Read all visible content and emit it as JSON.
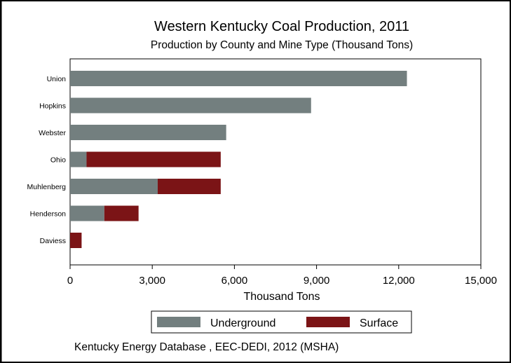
{
  "chart_data": {
    "type": "bar",
    "orientation": "horizontal",
    "stacked": true,
    "title": "Western Kentucky Coal Production, 2011",
    "subtitle": "Production by County and Mine Type (Thousand Tons)",
    "xlabel": "Thousand Tons",
    "ylabel": "",
    "xlim": [
      0,
      15000
    ],
    "xticks": [
      "0",
      "3,000",
      "6,000",
      "9,000",
      "12,000",
      "15,000"
    ],
    "categories": [
      "Union",
      "Hopkins",
      "Webster",
      "Ohio",
      "Muhlenberg",
      "Henderson",
      "Daviess"
    ],
    "series": [
      {
        "name": "Underground",
        "color": "#737f7f",
        "values": [
          12300,
          8800,
          5700,
          600,
          3200,
          1250,
          0
        ]
      },
      {
        "name": "Surface",
        "color": "#7b1416",
        "values": [
          0,
          0,
          0,
          4900,
          2300,
          1250,
          420
        ]
      }
    ],
    "legend_position": "bottom",
    "grid": false,
    "note": "Kentucky Energy Database , EEC-DEDI, 2012 (MSHA)"
  }
}
